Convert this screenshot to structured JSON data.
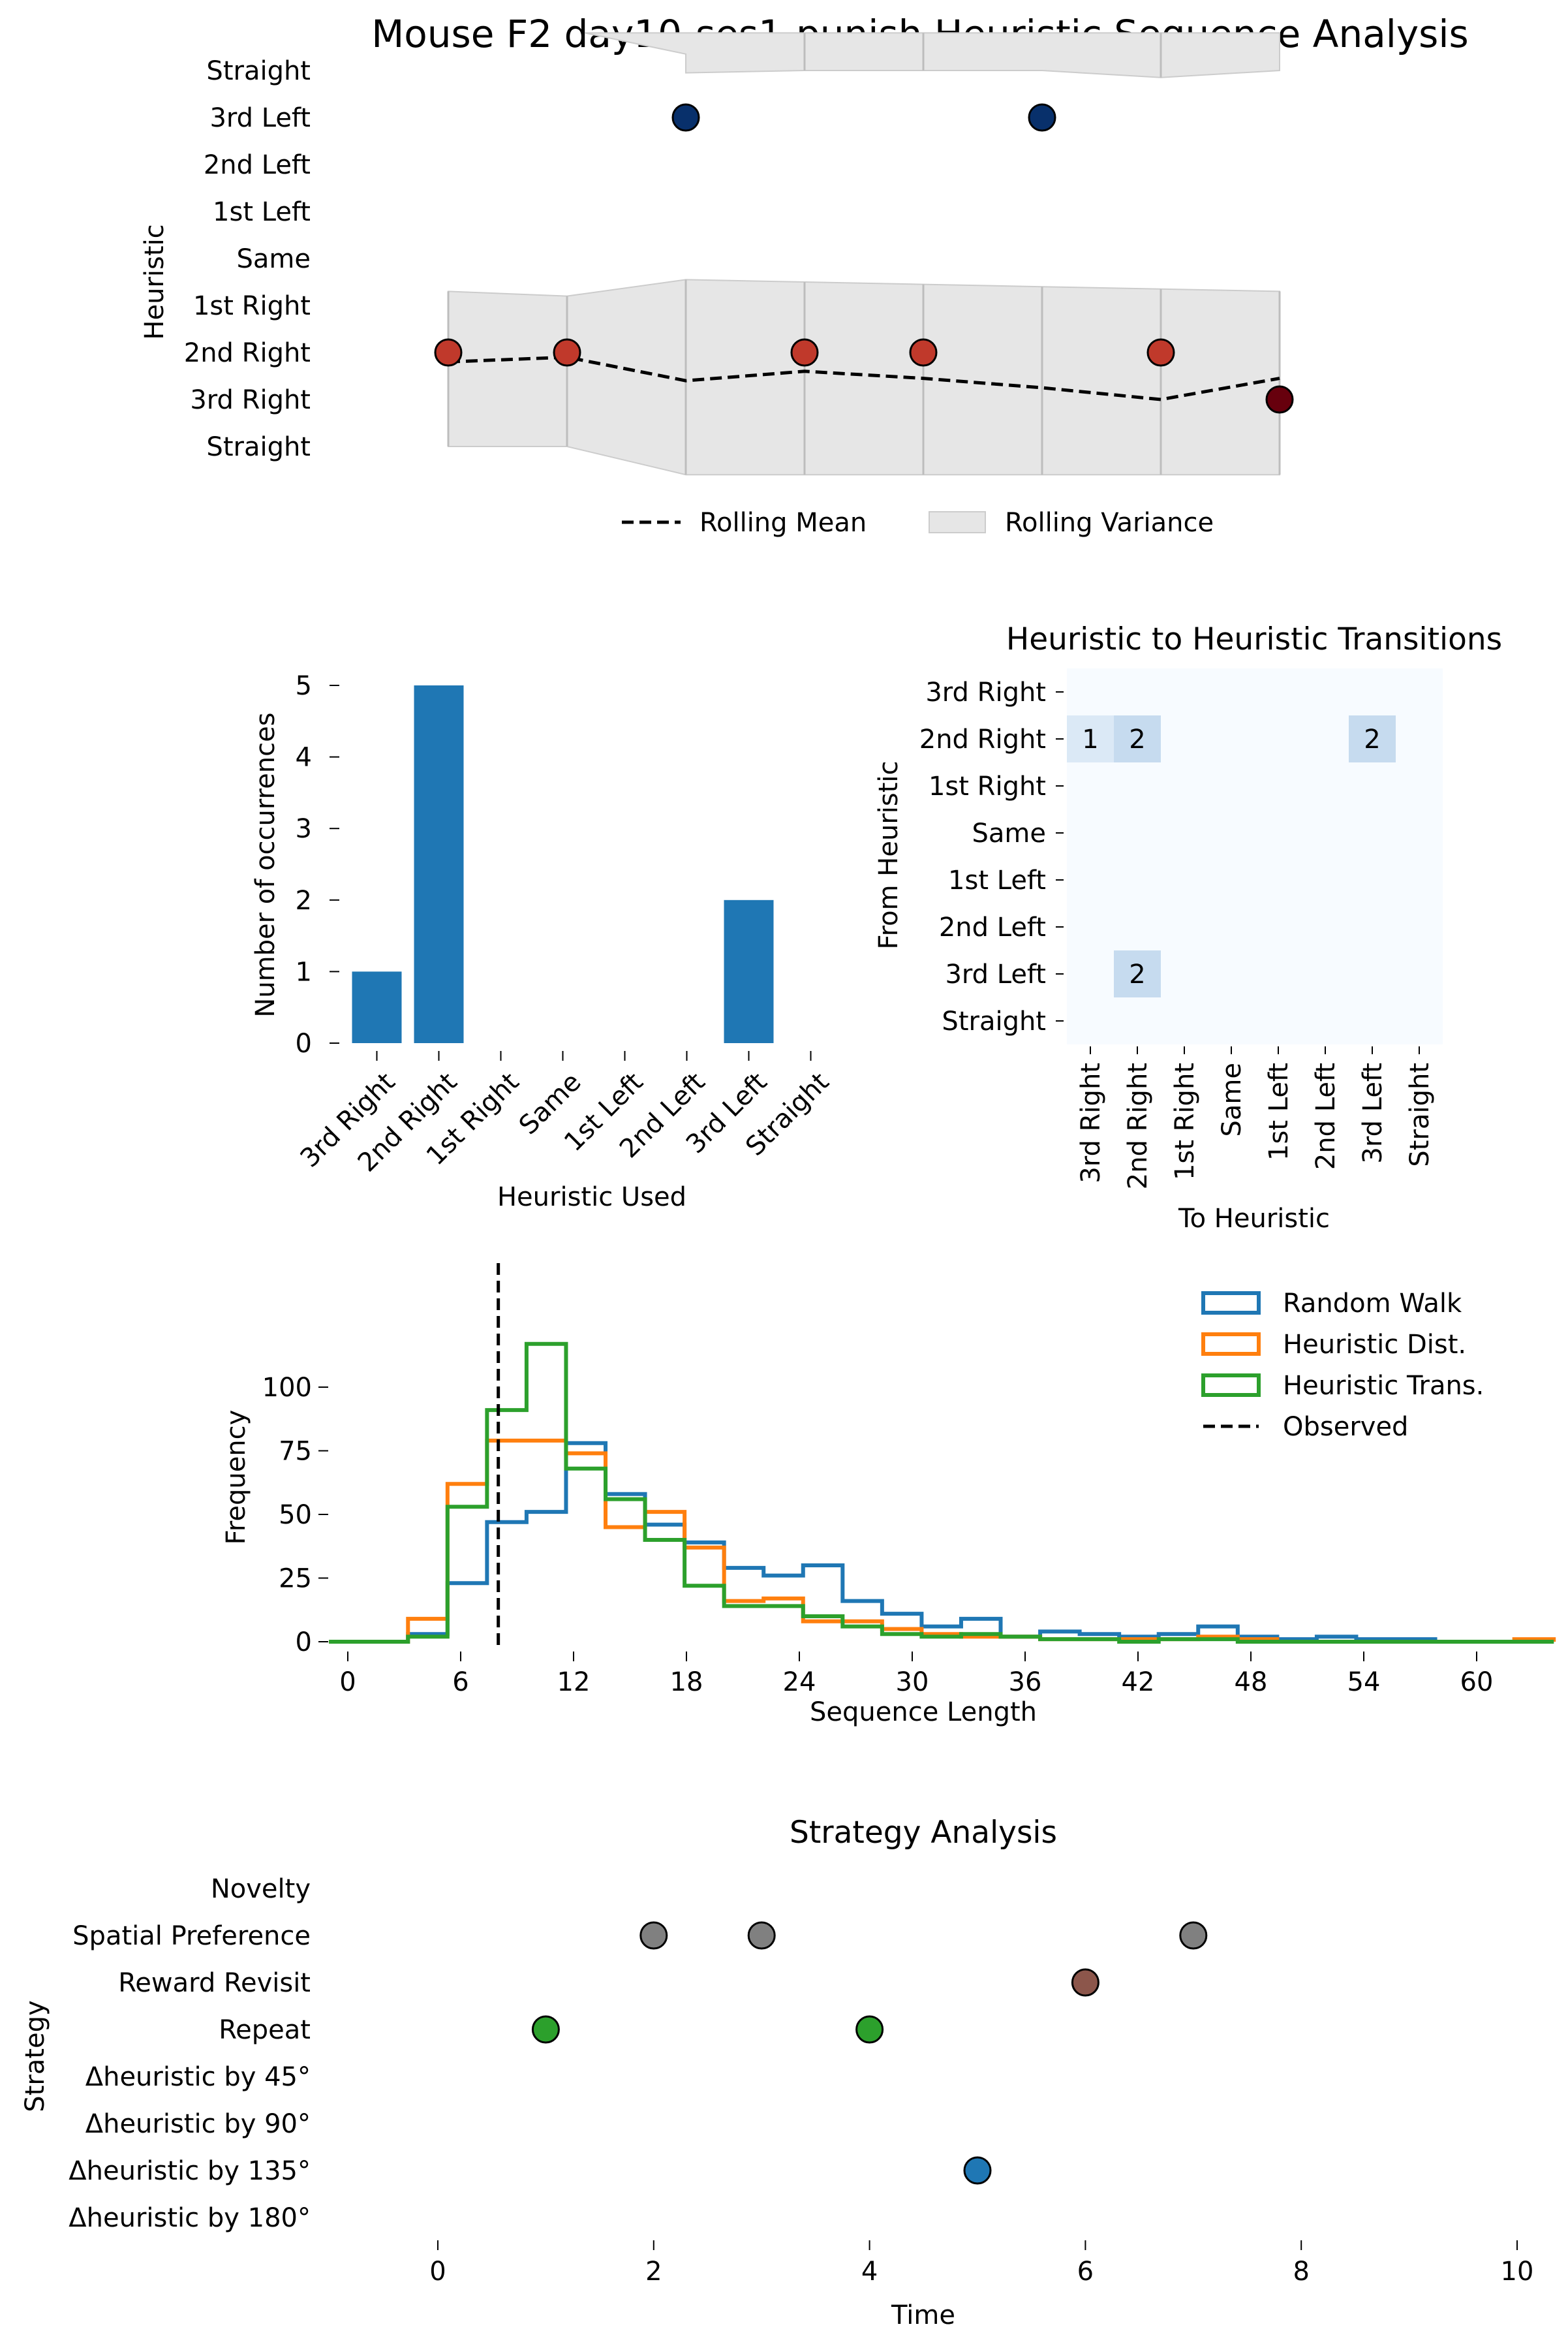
{
  "figure": {
    "title": "Mouse F2 day10-ses1-punish Heuristic Sequence Analysis"
  },
  "colors": {
    "red_marker": "#c0392b",
    "dark_red_marker": "#67000d",
    "navy_marker": "#08306b",
    "bar_blue": "#1f77b4",
    "orange": "#ff7f0e",
    "green": "#2ca02c",
    "gray_marker": "#808080",
    "brown_marker": "#8c564b",
    "variance_fill": "#e6e6e6",
    "heat_low": "#f7fbff",
    "heat_mid": "#c6dbef"
  },
  "chart_data": [
    {
      "id": "sequence",
      "type": "line",
      "ylabel": "Heuristic",
      "y_categories": [
        "Straight",
        "3rd Right",
        "2nd Right",
        "1st Right",
        "Same",
        "1st Left",
        "2nd Left",
        "3rd Left",
        "Straight"
      ],
      "points": [
        {
          "t": 0,
          "category_index": 2,
          "color": "red"
        },
        {
          "t": 1,
          "category_index": 2,
          "color": "red"
        },
        {
          "t": 2,
          "category_index": 7,
          "color": "navy"
        },
        {
          "t": 3,
          "category_index": 2,
          "color": "red"
        },
        {
          "t": 4,
          "category_index": 2,
          "color": "red"
        },
        {
          "t": 5,
          "category_index": 7,
          "color": "navy"
        },
        {
          "t": 6,
          "category_index": 2,
          "color": "red"
        },
        {
          "t": 7,
          "category_index": 1,
          "color": "darkred"
        }
      ],
      "rolling_mean": [
        1.8,
        1.9,
        1.4,
        1.6,
        1.45,
        1.25,
        1.0,
        1.45
      ],
      "variance_lower": [
        0.0,
        0.0,
        -0.6,
        -0.6,
        -0.6,
        -0.6,
        -0.6,
        -0.6
      ],
      "variance_upper": [
        3.3,
        3.2,
        3.55,
        3.5,
        3.45,
        3.4,
        3.35,
        3.3
      ],
      "variance2_lower": [
        8.0,
        8.0,
        7.95,
        8.0,
        8.0,
        8.0,
        7.85,
        8.0
      ],
      "variance2_upper": [
        8.8,
        8.8,
        8.8,
        8.8,
        8.8,
        8.8,
        8.8,
        8.8
      ],
      "legend": [
        "Rolling Mean",
        "Rolling Variance"
      ],
      "legend_position": "bottom-center"
    },
    {
      "id": "counts",
      "type": "bar",
      "categories": [
        "3rd Right",
        "2nd Right",
        "1st Right",
        "Same",
        "1st Left",
        "2nd Left",
        "3rd Left",
        "Straight"
      ],
      "values": [
        1,
        5,
        0,
        0,
        0,
        0,
        2,
        0
      ],
      "xlabel": "Heuristic Used",
      "ylabel": "Number of occurrences",
      "ylim": [
        0,
        5
      ],
      "yticks": [
        "0",
        "1",
        "2",
        "3",
        "4",
        "5"
      ]
    },
    {
      "id": "transitions",
      "type": "heatmap",
      "title": "Heuristic to Heuristic Transitions",
      "xlabel": "To Heuristic",
      "ylabel": "From Heuristic",
      "rows": [
        "3rd Right",
        "2nd Right",
        "1st Right",
        "Same",
        "1st Left",
        "2nd Left",
        "3rd Left",
        "Straight"
      ],
      "cols": [
        "3rd Right",
        "2nd Right",
        "1st Right",
        "Same",
        "1st Left",
        "2nd Left",
        "3rd Left",
        "Straight"
      ],
      "matrix": [
        [
          0,
          0,
          0,
          0,
          0,
          0,
          0,
          0
        ],
        [
          1,
          2,
          0,
          0,
          0,
          0,
          2,
          0
        ],
        [
          0,
          0,
          0,
          0,
          0,
          0,
          0,
          0
        ],
        [
          0,
          0,
          0,
          0,
          0,
          0,
          0,
          0
        ],
        [
          0,
          0,
          0,
          0,
          0,
          0,
          0,
          0
        ],
        [
          0,
          0,
          0,
          0,
          0,
          0,
          0,
          0
        ],
        [
          0,
          2,
          0,
          0,
          0,
          0,
          0,
          0
        ],
        [
          0,
          0,
          0,
          0,
          0,
          0,
          0,
          0
        ]
      ]
    },
    {
      "id": "histogram",
      "type": "histogram",
      "xlabel": "Sequence Length",
      "ylabel": "Frequency",
      "xlim": [
        -1,
        61
      ],
      "ylim": [
        0,
        122
      ],
      "xticks": [
        "0",
        "6",
        "12",
        "18",
        "24",
        "30",
        "36",
        "42",
        "48",
        "54",
        "60"
      ],
      "yticks": [
        "0",
        "25",
        "50",
        "75",
        "100"
      ],
      "observed": 8,
      "bin_width": 2.1,
      "bin_start": -1,
      "series": [
        {
          "name": "Random Walk",
          "color": "#1f77b4",
          "counts": [
            0,
            0,
            3,
            23,
            47,
            51,
            78,
            58,
            46,
            39,
            29,
            26,
            30,
            16,
            11,
            6,
            9,
            2,
            4,
            3,
            2,
            3,
            6,
            2,
            1,
            2,
            1,
            1,
            0,
            0,
            0
          ]
        },
        {
          "name": "Heuristic Dist.",
          "color": "#ff7f0e",
          "counts": [
            0,
            0,
            9,
            62,
            79,
            79,
            74,
            45,
            51,
            37,
            16,
            17,
            8,
            8,
            5,
            3,
            2,
            2,
            1,
            1,
            1,
            1,
            2,
            1,
            0,
            0,
            0,
            0,
            0,
            0,
            1
          ]
        },
        {
          "name": "Heuristic Trans.",
          "color": "#2ca02c",
          "counts": [
            0,
            0,
            2,
            53,
            91,
            117,
            68,
            56,
            40,
            22,
            14,
            14,
            10,
            6,
            3,
            2,
            3,
            2,
            1,
            1,
            0,
            1,
            1,
            0,
            0,
            0,
            0,
            0,
            0,
            0,
            0
          ]
        }
      ],
      "legend": [
        "Random Walk",
        "Heuristic Dist.",
        "Heuristic Trans.",
        "Observed"
      ],
      "legend_position": "top-right"
    },
    {
      "id": "strategy",
      "type": "scatter",
      "title": "Strategy Analysis",
      "xlabel": "Time",
      "ylabel": "Strategy",
      "xlim": [
        -1,
        10
      ],
      "xticks": [
        "0",
        "2",
        "4",
        "6",
        "8",
        "10"
      ],
      "y_categories": [
        "Novelty",
        "Spatial Preference",
        "Reward Revisit",
        "Repeat",
        "Δheuristic by 45°",
        "Δheuristic by 90°",
        "Δheuristic by 135°",
        "Δheuristic by 180°"
      ],
      "points": [
        {
          "x": 1,
          "category": "Repeat",
          "color": "green"
        },
        {
          "x": 2,
          "category": "Spatial Preference",
          "color": "gray"
        },
        {
          "x": 3,
          "category": "Spatial Preference",
          "color": "gray"
        },
        {
          "x": 4,
          "category": "Repeat",
          "color": "green"
        },
        {
          "x": 5,
          "category": "Δheuristic by 135°",
          "color": "blue"
        },
        {
          "x": 6,
          "category": "Reward Revisit",
          "color": "brown"
        },
        {
          "x": 7,
          "category": "Spatial Preference",
          "color": "gray"
        }
      ]
    }
  ]
}
